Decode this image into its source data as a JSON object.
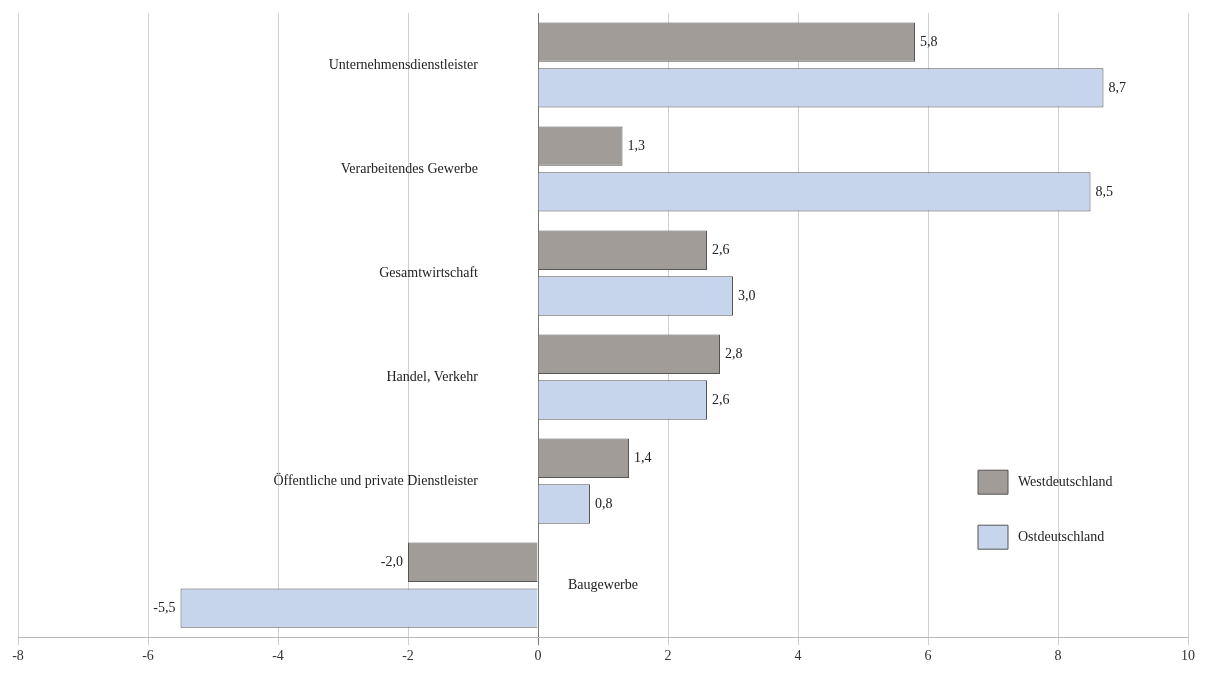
{
  "chart_data": {
    "type": "bar",
    "orientation": "horizontal",
    "categories": [
      "Unternehmensdienstleister",
      "Verarbeitendes Gewerbe",
      "Gesamtwirtschaft",
      "Handel, Verkehr",
      "Öffentliche und private Dienstleister",
      "Baugewerbe"
    ],
    "series": [
      {
        "name": "Westdeutschland",
        "color": "#a29c98",
        "values": [
          5.8,
          1.3,
          2.6,
          2.8,
          1.4,
          -2.0
        ],
        "value_labels": [
          "5,8",
          "1,3",
          "2,6",
          "2,8",
          "1,4",
          "-2,0"
        ]
      },
      {
        "name": "Ostdeutschland",
        "color": "#c6d4ec",
        "values": [
          8.7,
          8.5,
          3.0,
          2.6,
          0.8,
          -5.5
        ],
        "value_labels": [
          "8,7",
          "8,5",
          "3,0",
          "2,6",
          "0,8",
          "-5,5"
        ]
      }
    ],
    "xlim": [
      -8,
      10
    ],
    "xticks": [
      -8,
      -6,
      -4,
      -2,
      0,
      2,
      4,
      6,
      8,
      10
    ],
    "grid": "x",
    "legend": "bottom right"
  }
}
